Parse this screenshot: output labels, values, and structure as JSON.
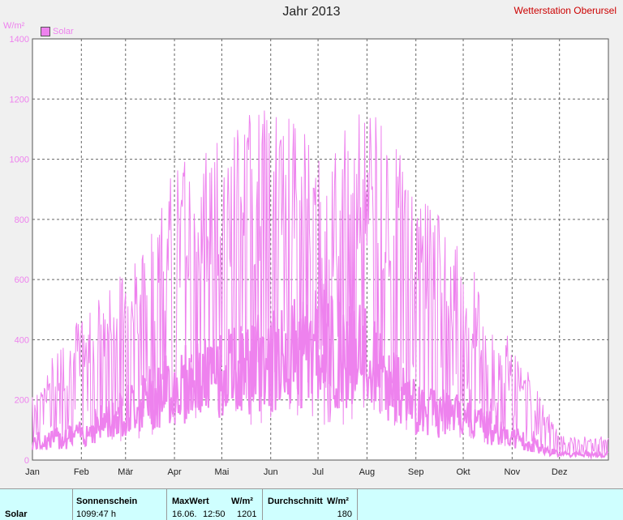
{
  "title": "Jahr 2013",
  "station": "Wetterstation Oberursel",
  "unit_label": "W/m²",
  "legend_label": "Solar",
  "table": {
    "row_label": "Solar",
    "sunshine_header": "Sonnenschein",
    "sunshine_value": "1099:47 h",
    "max_header": "MaxWert",
    "max_unit": "W/m²",
    "max_date": "16.06.",
    "max_time": "12:50",
    "max_value": "1201",
    "avg_header": "Durchschnitt",
    "avg_unit": "W/m²",
    "avg_value": "180"
  },
  "chart_data": {
    "type": "line",
    "title": "Jahr 2013",
    "ylabel": "W/m²",
    "ylim": [
      0,
      1400
    ],
    "yticks": [
      "0",
      "200",
      "400",
      "600",
      "800",
      "1000",
      "1200",
      "1400"
    ],
    "xlim": [
      0,
      365
    ],
    "month_labels": [
      "Jan",
      "Feb",
      "Mär",
      "Apr",
      "Mai",
      "Jun",
      "Jul",
      "Aug",
      "Sep",
      "Okt",
      "Nov",
      "Dez"
    ],
    "month_starts": [
      0,
      31,
      59,
      90,
      120,
      151,
      181,
      212,
      243,
      273,
      304,
      334
    ],
    "grid": true,
    "legend_position": "top-left",
    "color": "#ee82ee",
    "series": [
      {
        "name": "Solar",
        "monthly_max_envelope": [
          260,
          480,
          650,
          980,
          1100,
          1201,
          1050,
          1180,
          950,
          700,
          400,
          80
        ],
        "monthly_avg_envelope": [
          60,
          90,
          180,
          260,
          300,
          350,
          400,
          350,
          180,
          150,
          80,
          20
        ]
      }
    ]
  }
}
